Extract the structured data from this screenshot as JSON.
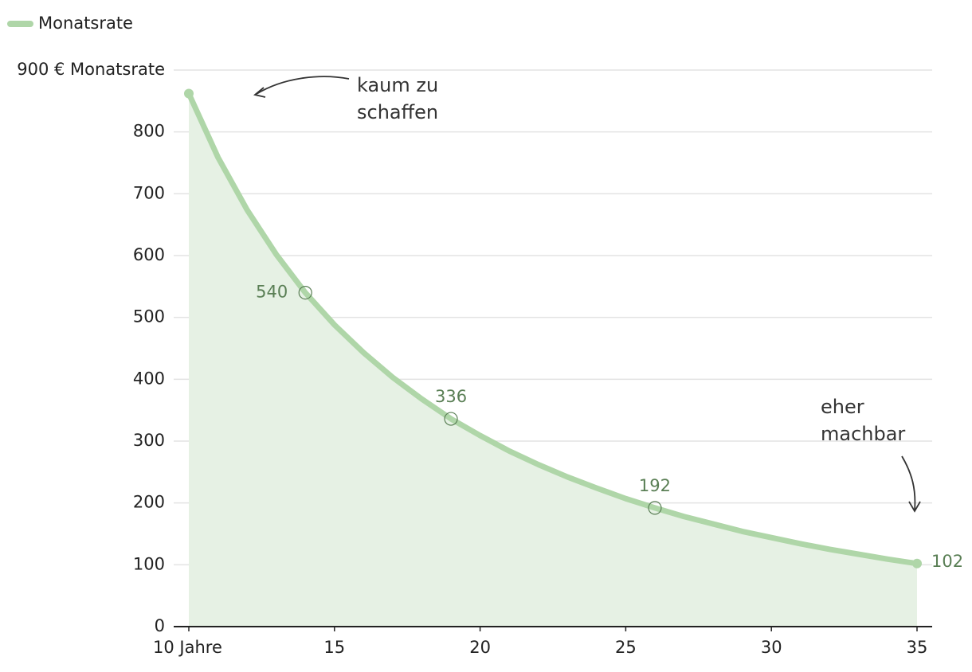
{
  "chart_data": {
    "type": "area",
    "x": [
      10,
      11,
      12,
      13,
      14,
      15,
      16,
      17,
      18,
      19,
      20,
      21,
      22,
      23,
      24,
      25,
      26,
      27,
      28,
      29,
      30,
      31,
      32,
      33,
      34,
      35
    ],
    "series": [
      {
        "name": "Monatsrate",
        "color": "#afd6a8",
        "fill": "#e6f1e4",
        "values": [
          862,
          759,
          674,
          602,
          540,
          488,
          443,
          403,
          368,
          336,
          309,
          284,
          262,
          242,
          224,
          207,
          192,
          178,
          166,
          154,
          144,
          134,
          125,
          117,
          109,
          102
        ],
        "value_labels": [
          null,
          null,
          null,
          null,
          "540",
          null,
          null,
          null,
          null,
          "336",
          null,
          null,
          null,
          null,
          null,
          null,
          "192",
          null,
          null,
          null,
          null,
          null,
          null,
          null,
          null,
          "102"
        ]
      }
    ],
    "xlim": [
      10,
      35
    ],
    "xticks": [
      {
        "value": 10,
        "label": "10 Jahre"
      },
      15,
      20,
      25,
      30,
      35
    ],
    "ylim": [
      0,
      900
    ],
    "yticks": [
      0,
      100,
      200,
      300,
      400,
      500,
      600,
      700,
      800,
      {
        "value": 900,
        "label": "900 € Monatsrate"
      }
    ],
    "grid": true,
    "legend": "top-left",
    "annotations": [
      {
        "lines": [
          "kaum zu",
          "schaffen"
        ]
      },
      {
        "lines": [
          "eher",
          "machbar"
        ]
      }
    ]
  }
}
